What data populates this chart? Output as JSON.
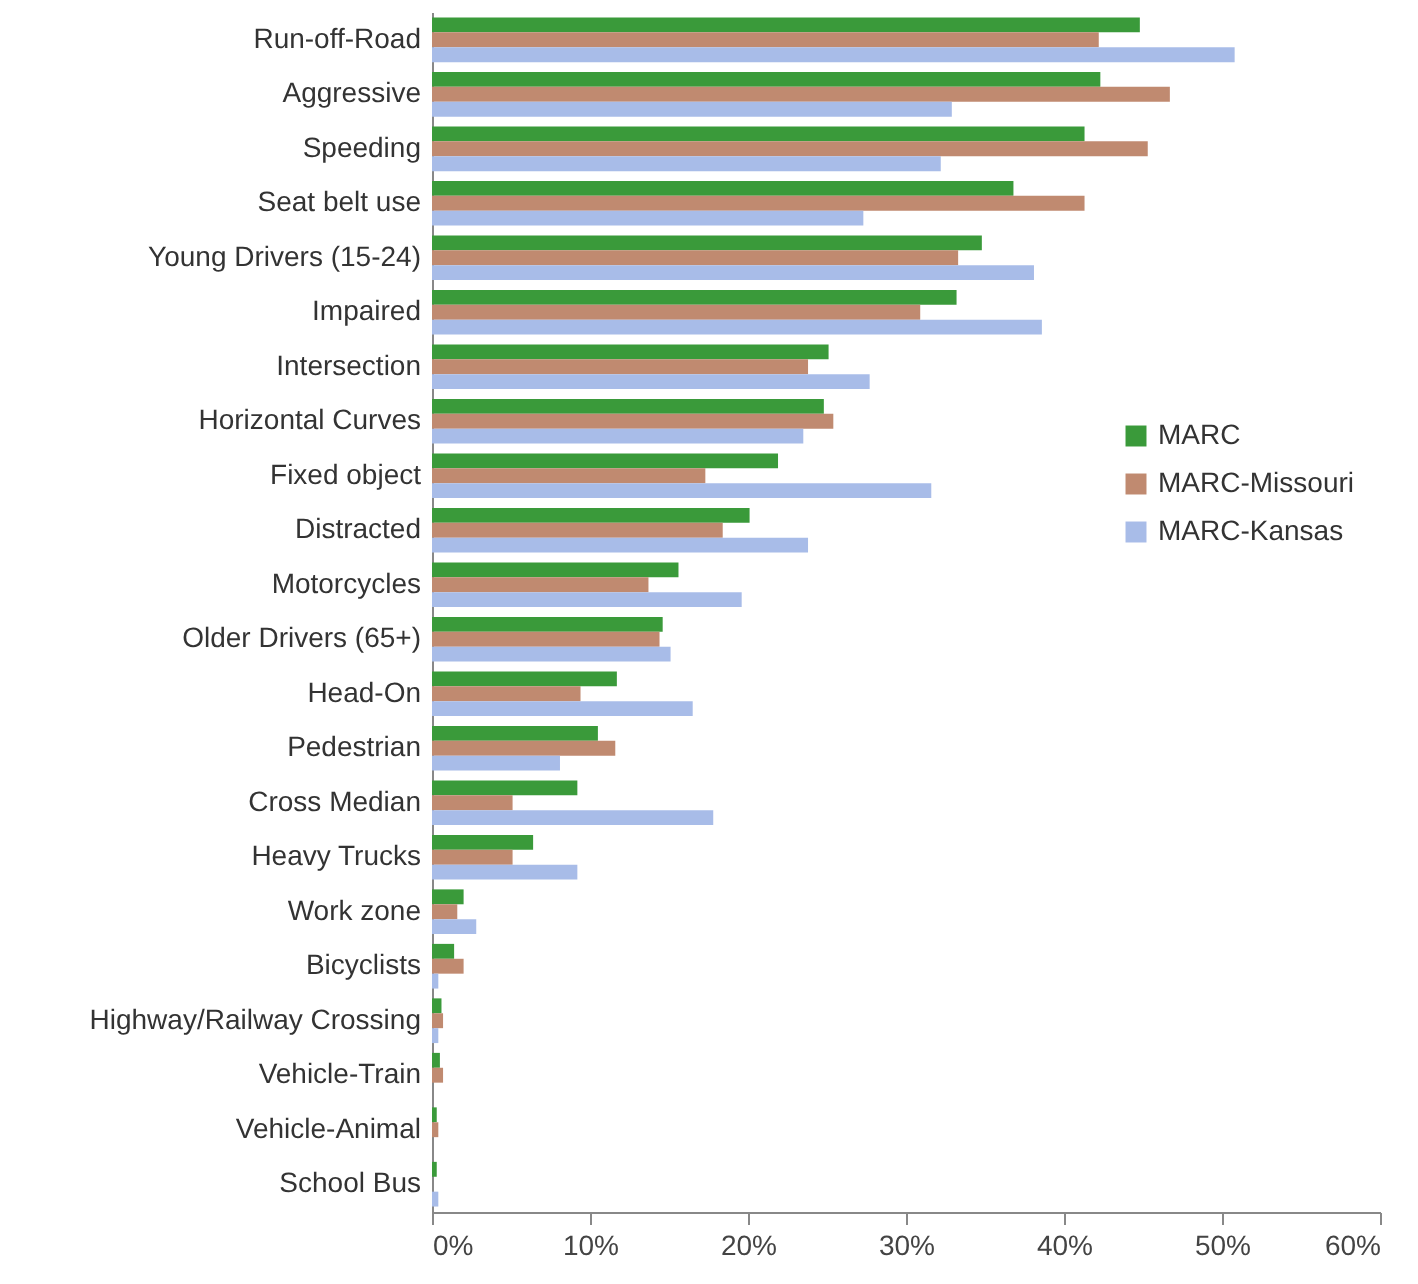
{
  "chart_data": {
    "type": "bar",
    "orientation": "horizontal",
    "categories": [
      "Run-off-Road",
      "Aggressive",
      "Speeding",
      "Seat belt use",
      "Young Drivers (15-24)",
      "Impaired",
      "Intersection",
      "Horizontal Curves",
      "Fixed object",
      "Distracted",
      "Motorcycles",
      "Older Drivers (65+)",
      "Head-On",
      "Pedestrian",
      "Cross Median",
      "Heavy Trucks",
      "Work zone",
      "Bicyclists",
      "Highway/Railway Crossing",
      "Vehicle-Train",
      "Vehicle-Animal",
      "School Bus"
    ],
    "series": [
      {
        "name": "MARC",
        "color": "#3a9a3a",
        "values": [
          44.8,
          42.3,
          41.3,
          36.8,
          34.8,
          33.2,
          25.1,
          24.8,
          21.9,
          20.1,
          15.6,
          14.6,
          11.7,
          10.5,
          9.2,
          6.4,
          2.0,
          1.4,
          0.6,
          0.5,
          0.3,
          0.3
        ]
      },
      {
        "name": "MARC-Missouri",
        "color": "#c08a70",
        "values": [
          42.2,
          46.7,
          45.3,
          41.3,
          33.3,
          30.9,
          23.8,
          25.4,
          17.3,
          18.4,
          13.7,
          14.4,
          9.4,
          11.6,
          5.1,
          5.1,
          1.6,
          2.0,
          0.7,
          0.7,
          0.4,
          null
        ]
      },
      {
        "name": "MARC-Kansas",
        "color": "#a8bce8",
        "values": [
          50.8,
          32.9,
          32.2,
          27.3,
          38.1,
          38.6,
          27.7,
          23.5,
          31.6,
          23.8,
          19.6,
          15.1,
          16.5,
          8.1,
          17.8,
          9.2,
          2.8,
          0.4,
          0.4,
          null,
          null,
          0.4
        ]
      }
    ],
    "xlim": [
      0,
      60
    ],
    "xticks": [
      {
        "value": 0,
        "label": "0%"
      },
      {
        "value": 10,
        "label": "10%"
      },
      {
        "value": 20,
        "label": "20%"
      },
      {
        "value": 30,
        "label": "30%"
      },
      {
        "value": 40,
        "label": "40%"
      },
      {
        "value": 50,
        "label": "50%"
      },
      {
        "value": 60,
        "label": "60%"
      }
    ],
    "legend": "right",
    "grid": false
  }
}
